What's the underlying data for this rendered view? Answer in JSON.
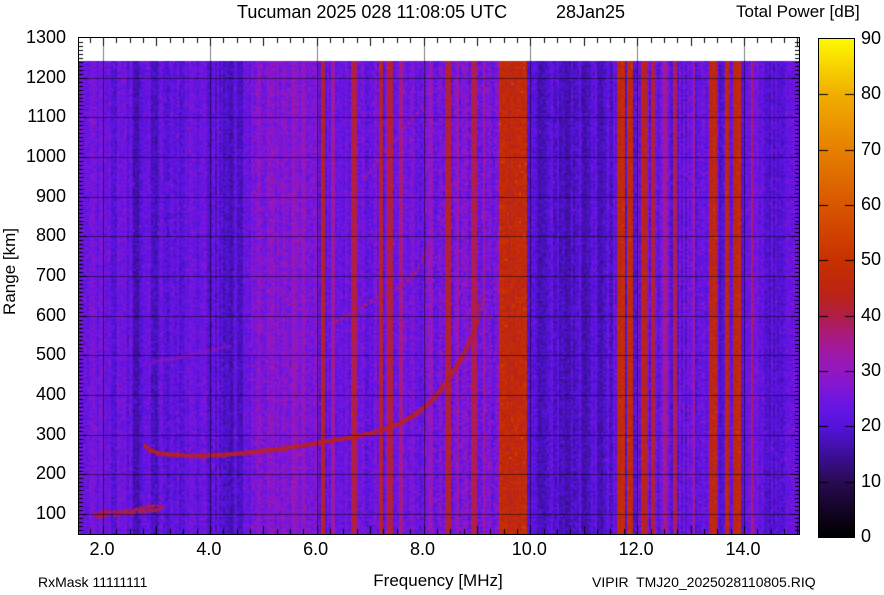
{
  "header": {
    "title": "Tucuman 2025 028 11:08:05 UTC",
    "date_label": "28Jan25",
    "colorbar_title": "Total Power [dB]"
  },
  "footer": {
    "rx_mask": "RxMask 11111111",
    "file_label": "VIPIR  TMJ20_2025028110805.RIQ"
  },
  "chart_data": {
    "type": "heatmap",
    "title": "Tucuman 2025 028 11:08:05 UTC  28Jan25",
    "xlabel": "Frequency [MHz]",
    "ylabel": "Range [km]",
    "xlim": [
      1.55,
      15.03
    ],
    "ylim": [
      50,
      1300
    ],
    "data_top_km": 1243,
    "grid": true,
    "x_grid": [
      2,
      4,
      6,
      8,
      10,
      12,
      14
    ],
    "y_grid": [
      100,
      200,
      300,
      400,
      500,
      600,
      700,
      800,
      900,
      1000,
      1100,
      1200
    ],
    "x_tick_labels": [
      {
        "v": 2,
        "label": "2.0"
      },
      {
        "v": 4,
        "label": "4.0"
      },
      {
        "v": 6,
        "label": "6.0"
      },
      {
        "v": 8,
        "label": "8.0"
      },
      {
        "v": 10,
        "label": "10.0"
      },
      {
        "v": 12,
        "label": "12.0"
      },
      {
        "v": 14,
        "label": "14.0"
      }
    ],
    "y_tick_labels": [
      100,
      200,
      300,
      400,
      500,
      600,
      700,
      800,
      900,
      1000,
      1100,
      1200,
      1300
    ],
    "x_minor_step": 0.25,
    "y_minor_step": 10,
    "colorbar": {
      "label": "Total Power [dB]",
      "min": 0,
      "max": 90,
      "tick_labels": [
        0,
        10,
        20,
        30,
        40,
        50,
        60,
        70,
        80,
        90
      ],
      "palette_stops": [
        [
          0,
          "#000000"
        ],
        [
          5,
          "#140527"
        ],
        [
          10,
          "#290b54"
        ],
        [
          15,
          "#3d0f9b"
        ],
        [
          20,
          "#5413dd"
        ],
        [
          24,
          "#6c15e2"
        ],
        [
          28,
          "#8717cf"
        ],
        [
          32,
          "#9c18b4"
        ],
        [
          36,
          "#a81a84"
        ],
        [
          40,
          "#b01e46"
        ],
        [
          44,
          "#bb2414"
        ],
        [
          50,
          "#c93000"
        ],
        [
          60,
          "#d85600"
        ],
        [
          70,
          "#e68000"
        ],
        [
          80,
          "#f1ad00"
        ],
        [
          90,
          "#fdf800"
        ]
      ]
    },
    "background_zones": [
      {
        "f0": 1.55,
        "f1": 2.05,
        "db": 23.0,
        "stripe": 3.0,
        "grain": 3.0
      },
      {
        "f0": 2.05,
        "f1": 2.55,
        "db": 22.0,
        "stripe": 3.5,
        "grain": 3.0
      },
      {
        "f0": 2.55,
        "f1": 3.1,
        "db": 21.0,
        "stripe": 3.5,
        "grain": 3.0
      },
      {
        "f0": 3.1,
        "f1": 4.1,
        "db": 22.0,
        "stripe": 3.0,
        "grain": 3.0
      },
      {
        "f0": 4.1,
        "f1": 4.78,
        "db": 20.5,
        "stripe": 3.5,
        "grain": 3.0
      },
      {
        "f0": 4.78,
        "f1": 6.05,
        "db": 27.0,
        "stripe": 2.2,
        "grain": 4.0
      },
      {
        "f0": 6.05,
        "f1": 6.6,
        "db": 23.5,
        "stripe": 3.0,
        "grain": 3.0
      },
      {
        "f0": 6.6,
        "f1": 8.0,
        "db": 24.0,
        "stripe": 3.0,
        "grain": 3.5
      },
      {
        "f0": 8.0,
        "f1": 9.42,
        "db": 25.5,
        "stripe": 3.0,
        "grain": 4.5
      },
      {
        "f0": 9.94,
        "f1": 11.55,
        "db": 20.0,
        "stripe": 3.5,
        "grain": 3.0
      },
      {
        "f0": 11.95,
        "f1": 12.35,
        "db": 24.0,
        "stripe": 4.0,
        "grain": 4.0
      },
      {
        "f0": 12.35,
        "f1": 13.33,
        "db": 23.0,
        "stripe": 3.5,
        "grain": 3.5
      },
      {
        "f0": 14.0,
        "f1": 14.3,
        "db": 23.0,
        "stripe": 3.0,
        "grain": 3.0
      },
      {
        "f0": 14.3,
        "f1": 14.75,
        "db": 21.0,
        "stripe": 3.5,
        "grain": 3.0
      },
      {
        "f0": 14.75,
        "f1": 15.03,
        "db": 24.5,
        "stripe": 2.5,
        "grain": 3.0
      }
    ],
    "rfi_bands": [
      {
        "f0": 5.54,
        "f1": 5.6,
        "db": 31,
        "grain": 3
      },
      {
        "f0": 5.72,
        "f1": 5.78,
        "db": 30,
        "grain": 3
      },
      {
        "f0": 6.08,
        "f1": 6.17,
        "db": 43,
        "grain": 3
      },
      {
        "f0": 6.28,
        "f1": 6.33,
        "db": 33,
        "grain": 3
      },
      {
        "f0": 6.66,
        "f1": 6.75,
        "db": 40,
        "grain": 3
      },
      {
        "f0": 7.17,
        "f1": 7.26,
        "db": 43,
        "grain": 3
      },
      {
        "f0": 7.3,
        "f1": 7.42,
        "db": 41,
        "grain": 3
      },
      {
        "f0": 7.55,
        "f1": 7.63,
        "db": 35,
        "grain": 3
      },
      {
        "f0": 8.1,
        "f1": 8.16,
        "db": 31,
        "grain": 3
      },
      {
        "f0": 8.42,
        "f1": 8.53,
        "db": 41,
        "grain": 3
      },
      {
        "f0": 8.63,
        "f1": 8.68,
        "db": 33,
        "grain": 3
      },
      {
        "f0": 8.88,
        "f1": 9.0,
        "db": 39,
        "grain": 3
      },
      {
        "f0": 9.1,
        "f1": 9.16,
        "db": 33,
        "grain": 3
      },
      {
        "f0": 9.42,
        "f1": 9.94,
        "db": 46,
        "grain": 4
      },
      {
        "f0": 11.62,
        "f1": 11.76,
        "db": 47,
        "grain": 3
      },
      {
        "f0": 11.8,
        "f1": 11.94,
        "db": 47,
        "grain": 3
      },
      {
        "f0": 12.08,
        "f1": 12.19,
        "db": 44,
        "grain": 3
      },
      {
        "f0": 12.26,
        "f1": 12.33,
        "db": 41,
        "grain": 3
      },
      {
        "f0": 12.5,
        "f1": 12.54,
        "db": 34,
        "grain": 3
      },
      {
        "f0": 12.68,
        "f1": 12.73,
        "db": 39,
        "grain": 3
      },
      {
        "f0": 13.05,
        "f1": 13.1,
        "db": 34,
        "grain": 3
      },
      {
        "f0": 13.36,
        "f1": 13.49,
        "db": 45,
        "grain": 3
      },
      {
        "f0": 13.63,
        "f1": 13.73,
        "db": 45,
        "grain": 3
      },
      {
        "f0": 13.81,
        "f1": 13.95,
        "db": 46,
        "grain": 3
      },
      {
        "f0": 14.12,
        "f1": 14.17,
        "db": 37,
        "grain": 3
      }
    ],
    "dark_bands": [
      {
        "f0": 2.57,
        "f1": 2.66,
        "db": 17.0
      },
      {
        "f0": 2.95,
        "f1": 3.05,
        "db": 18.0
      },
      {
        "f0": 4.3,
        "f1": 4.42,
        "db": 17.5
      },
      {
        "f0": 4.52,
        "f1": 4.62,
        "db": 18.0
      },
      {
        "f0": 10.12,
        "f1": 10.3,
        "db": 17.0
      },
      {
        "f0": 10.55,
        "f1": 10.75,
        "db": 17.5
      },
      {
        "f0": 10.95,
        "f1": 11.12,
        "db": 17.0
      },
      {
        "f0": 11.25,
        "f1": 11.4,
        "db": 18.0
      },
      {
        "f0": 13.52,
        "f1": 13.6,
        "db": 19.0
      },
      {
        "f0": 14.38,
        "f1": 14.52,
        "db": 18.5
      },
      {
        "f0": 14.6,
        "f1": 14.7,
        "db": 19.0
      }
    ],
    "traces": [
      {
        "name": "ground-echo",
        "style": "speckle",
        "db": 40,
        "thickness_km": 14,
        "points": [
          [
            1.85,
            102
          ],
          [
            2.3,
            107
          ],
          [
            2.7,
            114
          ],
          [
            3.05,
            121
          ]
        ]
      },
      {
        "name": "f-trace-o",
        "style": "solid",
        "db": 43,
        "thickness_km": 10,
        "points": [
          [
            2.78,
            274
          ],
          [
            2.9,
            260
          ],
          [
            3.05,
            253
          ],
          [
            3.4,
            249
          ],
          [
            3.8,
            247
          ],
          [
            4.3,
            250
          ],
          [
            4.8,
            256
          ],
          [
            5.3,
            264
          ],
          [
            5.8,
            274
          ],
          [
            6.2,
            283
          ],
          [
            6.6,
            292
          ],
          [
            7.0,
            303
          ],
          [
            7.3,
            315
          ],
          [
            7.6,
            332
          ],
          [
            7.85,
            352
          ],
          [
            8.05,
            374
          ],
          [
            8.25,
            402
          ],
          [
            8.45,
            438
          ],
          [
            8.62,
            475
          ],
          [
            8.78,
            512
          ],
          [
            8.9,
            548
          ],
          [
            8.98,
            578
          ]
        ]
      },
      {
        "name": "f-trace-o-tip",
        "style": "dotted",
        "db": 41,
        "thickness_km": 7,
        "points": [
          [
            8.98,
            578
          ],
          [
            9.02,
            610
          ],
          [
            9.05,
            640
          ]
        ]
      },
      {
        "name": "f-trace-x",
        "style": "solid",
        "db": 40,
        "thickness_km": 7,
        "points": [
          [
            7.75,
            338
          ],
          [
            7.95,
            358
          ],
          [
            8.15,
            382
          ],
          [
            8.35,
            412
          ],
          [
            8.52,
            445
          ],
          [
            8.68,
            480
          ],
          [
            8.82,
            515
          ],
          [
            8.93,
            550
          ],
          [
            9.02,
            582
          ]
        ]
      },
      {
        "name": "f-trace-x-tip",
        "style": "dotted",
        "db": 39,
        "thickness_km": 7,
        "points": [
          [
            9.02,
            582
          ],
          [
            9.08,
            615
          ],
          [
            9.13,
            648
          ]
        ]
      },
      {
        "name": "second-hop-flat",
        "style": "faint",
        "db": 31,
        "thickness_km": 8,
        "points": [
          [
            2.85,
            481
          ],
          [
            3.3,
            491
          ],
          [
            3.9,
            510
          ],
          [
            4.4,
            524
          ]
        ]
      },
      {
        "name": "second-hop",
        "style": "dotted",
        "db": 37,
        "thickness_km": 8,
        "points": [
          [
            6.35,
            583
          ],
          [
            6.8,
            618
          ],
          [
            7.2,
            650
          ],
          [
            7.55,
            672
          ],
          [
            7.8,
            700
          ],
          [
            8.0,
            742
          ],
          [
            8.12,
            778
          ]
        ]
      },
      {
        "name": "third-hop",
        "style": "dotted",
        "db": 34,
        "thickness_km": 7,
        "points": [
          [
            6.9,
            948
          ],
          [
            7.2,
            1000
          ],
          [
            7.5,
            1048
          ],
          [
            7.75,
            1088
          ],
          [
            8.0,
            1130
          ]
        ]
      }
    ]
  }
}
